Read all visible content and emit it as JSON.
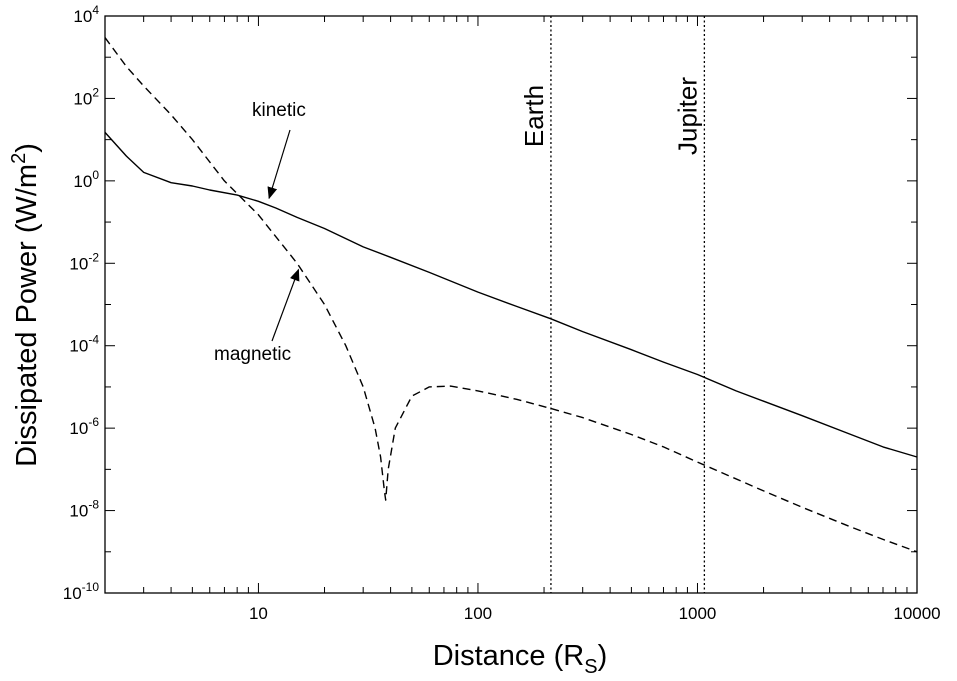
{
  "chart_data": {
    "type": "line",
    "xlabel": {
      "main": "Distance (R",
      "sub": "S",
      "close": ")"
    },
    "ylabel": {
      "main": "Dissipated Power (W/m",
      "sup": "2",
      "close": ")"
    },
    "x_scale": "log",
    "y_scale": "log",
    "xlim": [
      2,
      10000
    ],
    "ylim": [
      1e-10,
      10000
    ],
    "x_ticks": [
      {
        "value": 10,
        "label": "10"
      },
      {
        "value": 100,
        "label": "100"
      },
      {
        "value": 1000,
        "label": "1000"
      },
      {
        "value": 10000,
        "label": "10000"
      }
    ],
    "y_ticks": [
      {
        "value": 1e-10,
        "base": "10",
        "exp": "-10"
      },
      {
        "value": 1e-08,
        "base": "10",
        "exp": "-8"
      },
      {
        "value": 1e-06,
        "base": "10",
        "exp": "-6"
      },
      {
        "value": 0.0001,
        "base": "10",
        "exp": "-4"
      },
      {
        "value": 0.01,
        "base": "10",
        "exp": "-2"
      },
      {
        "value": 1,
        "base": "10",
        "exp": "0"
      },
      {
        "value": 100,
        "base": "10",
        "exp": "2"
      },
      {
        "value": 10000,
        "base": "10",
        "exp": "4"
      }
    ],
    "series": [
      {
        "name": "kinetic",
        "style": "solid",
        "x": [
          2,
          2.5,
          3,
          4,
          5,
          6,
          8,
          10,
          12,
          15,
          20,
          30,
          40,
          60,
          100,
          150,
          215,
          300,
          500,
          700,
          1000,
          1500,
          2000,
          3000,
          5000,
          7000,
          10000
        ],
        "y": [
          15,
          4,
          1.6,
          0.9,
          0.75,
          0.6,
          0.45,
          0.32,
          0.22,
          0.13,
          0.07,
          0.025,
          0.014,
          0.006,
          0.002,
          0.0009,
          0.00045,
          0.00022,
          8e-05,
          4e-05,
          2e-05,
          8e-06,
          4.5e-06,
          2e-06,
          7e-07,
          3.5e-07,
          2e-07
        ]
      },
      {
        "name": "magnetic",
        "style": "dashed",
        "x": [
          2,
          2.5,
          3,
          4,
          5,
          7,
          10,
          15,
          20,
          25,
          30,
          34,
          36,
          37.5,
          38,
          39,
          42,
          50,
          60,
          75,
          100,
          150,
          215,
          300,
          500,
          700,
          1000,
          2000,
          3000,
          5000,
          7000,
          10000
        ],
        "y": [
          3000,
          600,
          200,
          40,
          10,
          1,
          0.15,
          0.01,
          0.001,
          0.0001,
          1e-05,
          1e-06,
          2e-07,
          3e-08,
          1.8e-08,
          1e-07,
          1e-06,
          6e-06,
          1e-05,
          1.05e-05,
          8e-06,
          5e-06,
          3e-06,
          1.8e-06,
          7e-07,
          3.5e-07,
          1.5e-07,
          3e-08,
          1.2e-08,
          4e-09,
          2e-09,
          1e-09
        ]
      }
    ],
    "vertical_lines": [
      {
        "x": 215,
        "label": "Earth",
        "style": "dotted"
      },
      {
        "x": 1075,
        "label": "Jupiter",
        "style": "dotted"
      }
    ],
    "annotations": [
      {
        "text": "kinetic",
        "points_to_x": 10.5,
        "points_to_y": 0.32
      },
      {
        "text": "magnetic",
        "points_to_x": 14,
        "points_to_y": 0.011
      }
    ]
  }
}
